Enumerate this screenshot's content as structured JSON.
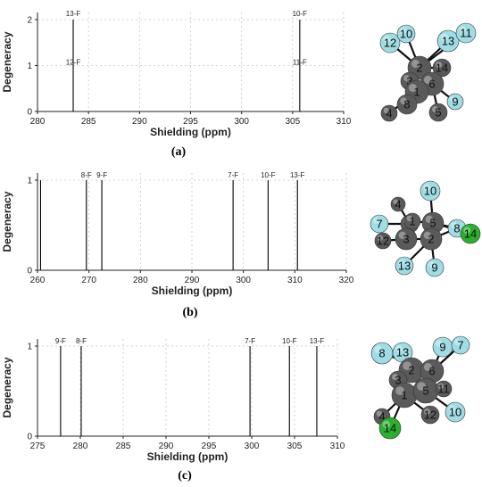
{
  "chart_data": [
    {
      "type": "bar",
      "panel": "(a)",
      "xlabel": "Shielding (ppm)",
      "ylabel": "Degeneracy",
      "xlim": [
        280,
        310
      ],
      "ylim": [
        0,
        2
      ],
      "xticks": [
        280,
        285,
        290,
        295,
        300,
        305,
        310
      ],
      "yticks": [
        0,
        1,
        2
      ],
      "grid": true,
      "peaks": [
        {
          "x": 283.5,
          "y": 2,
          "labels": [
            "13-F",
            "12-F"
          ]
        },
        {
          "x": 305.7,
          "y": 2,
          "labels": [
            "10-F",
            "11-F"
          ]
        }
      ]
    },
    {
      "type": "bar",
      "panel": "(b)",
      "xlabel": "Shielding (ppm)",
      "ylabel": "Degeneracy",
      "xlim": [
        260,
        320
      ],
      "ylim": [
        0,
        1
      ],
      "xticks": [
        260,
        270,
        280,
        290,
        300,
        310,
        320
      ],
      "yticks": [
        0,
        1
      ],
      "grid": true,
      "peaks": [
        {
          "x": 260.6,
          "y": 1,
          "labels": []
        },
        {
          "x": 269.5,
          "y": 1,
          "labels": [
            "8-F"
          ]
        },
        {
          "x": 272.5,
          "y": 1,
          "labels": [
            "9-F"
          ]
        },
        {
          "x": 298.0,
          "y": 1,
          "labels": [
            "7-F"
          ]
        },
        {
          "x": 304.8,
          "y": 1,
          "labels": [
            "10-F"
          ]
        },
        {
          "x": 310.5,
          "y": 1,
          "labels": [
            "13-F"
          ]
        }
      ]
    },
    {
      "type": "bar",
      "panel": "(c)",
      "xlabel": "Shielding (ppm)",
      "ylabel": "Degeneracy",
      "xlim": [
        275,
        310
      ],
      "ylim": [
        0,
        1
      ],
      "xticks": [
        275,
        280,
        285,
        290,
        295,
        300,
        305,
        310
      ],
      "yticks": [
        0,
        1
      ],
      "grid": true,
      "peaks": [
        {
          "x": 277.7,
          "y": 1,
          "labels": [
            "9-F"
          ]
        },
        {
          "x": 280.1,
          "y": 1,
          "labels": [
            "8-F"
          ]
        },
        {
          "x": 299.8,
          "y": 1,
          "labels": [
            "7-F"
          ]
        },
        {
          "x": 304.4,
          "y": 1,
          "labels": [
            "10-F"
          ]
        },
        {
          "x": 307.6,
          "y": 1,
          "labels": [
            "13-F"
          ]
        }
      ]
    }
  ],
  "molecules": [
    {
      "panel": "(a)",
      "atom_labels": [
        "12",
        "10",
        "13",
        "11",
        "2",
        "14",
        "3",
        "6",
        "1",
        "8",
        "4",
        "5",
        "9"
      ]
    },
    {
      "panel": "(b)",
      "atom_labels": [
        "4",
        "10",
        "7",
        "1",
        "1",
        "5",
        "8",
        "14",
        "12",
        "3",
        "2",
        "13",
        "9"
      ]
    },
    {
      "panel": "(c)",
      "atom_labels": [
        "8",
        "13",
        "9",
        "7",
        "2",
        "6",
        "3",
        "1",
        "5",
        "11",
        "4",
        "12",
        "10",
        "14"
      ]
    }
  ],
  "colors": {
    "carbon": "#5a5a5a",
    "fluorine": "#9fdde6",
    "chlorine": "#29b12e",
    "bond": "#111111",
    "grid": "#c8c8c8",
    "axis": "#222222"
  }
}
